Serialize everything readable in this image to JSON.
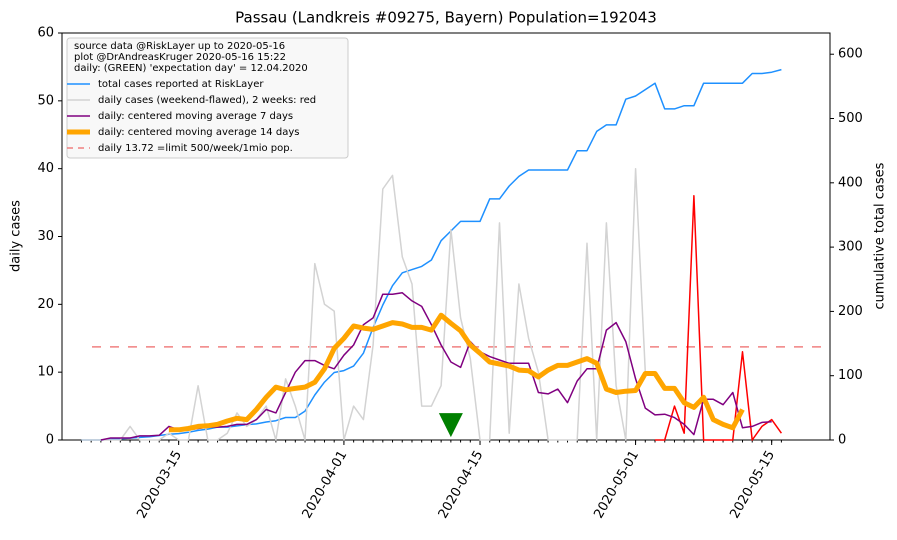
{
  "chart_data": {
    "type": "line",
    "title": "Passau (Landkreis #09275, Bayern) Population=192043",
    "y_label": "daily cases",
    "y2_label": "cumulative total cases",
    "y_label_color": "purple",
    "y2_label_color": "#1e90ff",
    "xlim": [
      "2020-03-03",
      "2020-05-21"
    ],
    "xticks": [
      "2020-03-15",
      "2020-04-01",
      "2020-04-15",
      "2020-05-01",
      "2020-05-15"
    ],
    "ylim": [
      0,
      60
    ],
    "yticks": [
      0,
      10,
      20,
      30,
      40,
      50,
      60
    ],
    "y2lim": [
      0,
      633
    ],
    "y2ticks": [
      0,
      100,
      200,
      300,
      400,
      500,
      600
    ],
    "legend_position": "upper left",
    "legend_header": [
      "source data @RiskLayer up to 2020-05-16",
      "plot @DrAndreasKruger 2020-05-16 15:22",
      "daily: (GREEN) 'expectation day' = 12.04.2020"
    ],
    "x": [
      "2020-03-05",
      "2020-03-06",
      "2020-03-07",
      "2020-03-08",
      "2020-03-09",
      "2020-03-10",
      "2020-03-11",
      "2020-03-12",
      "2020-03-13",
      "2020-03-14",
      "2020-03-15",
      "2020-03-16",
      "2020-03-17",
      "2020-03-18",
      "2020-03-19",
      "2020-03-20",
      "2020-03-21",
      "2020-03-22",
      "2020-03-23",
      "2020-03-24",
      "2020-03-25",
      "2020-03-26",
      "2020-03-27",
      "2020-03-28",
      "2020-03-29",
      "2020-03-30",
      "2020-03-31",
      "2020-04-01",
      "2020-04-02",
      "2020-04-03",
      "2020-04-04",
      "2020-04-05",
      "2020-04-06",
      "2020-04-07",
      "2020-04-08",
      "2020-04-09",
      "2020-04-10",
      "2020-04-11",
      "2020-04-12",
      "2020-04-13",
      "2020-04-14",
      "2020-04-15",
      "2020-04-16",
      "2020-04-17",
      "2020-04-18",
      "2020-04-19",
      "2020-04-20",
      "2020-04-21",
      "2020-04-22",
      "2020-04-23",
      "2020-04-24",
      "2020-04-25",
      "2020-04-26",
      "2020-04-27",
      "2020-04-28",
      "2020-04-29",
      "2020-04-30",
      "2020-05-01",
      "2020-05-02",
      "2020-05-03",
      "2020-05-04",
      "2020-05-05",
      "2020-05-06",
      "2020-05-07",
      "2020-05-08",
      "2020-05-09",
      "2020-05-10",
      "2020-05-11",
      "2020-05-12",
      "2020-05-13",
      "2020-05-14",
      "2020-05-15",
      "2020-05-16"
    ],
    "series": [
      {
        "name": "total cases reported at RiskLayer",
        "color": "#1e90ff",
        "line_width": 1.5,
        "axis": "y2",
        "values": [
          0,
          0,
          0,
          1,
          2,
          3,
          4,
          5,
          7,
          9,
          10,
          12,
          15,
          17,
          20,
          20,
          22,
          24,
          25,
          28,
          30,
          35,
          35,
          45,
          70,
          90,
          105,
          108,
          115,
          135,
          175,
          210,
          240,
          260,
          265,
          270,
          280,
          310,
          325,
          340,
          340,
          340,
          375,
          375,
          395,
          410,
          420,
          420,
          420,
          420,
          420,
          450,
          450,
          480,
          490,
          490,
          530,
          535,
          545,
          555,
          515,
          515,
          520,
          520,
          555,
          555,
          555,
          555,
          555,
          570,
          570,
          572,
          576
        ]
      },
      {
        "name": "daily cases (weekend-flawed), 2 weeks: red",
        "color": "#d3d3d3",
        "line_width": 1.5,
        "values": [
          0,
          0,
          0,
          0,
          0,
          2,
          0,
          0,
          0,
          1,
          0,
          0,
          8,
          0,
          0,
          1,
          4,
          2,
          3,
          5,
          0,
          9,
          5,
          0,
          26,
          20,
          19,
          0,
          5,
          3,
          14,
          37,
          39,
          27,
          23,
          5,
          5,
          8,
          31,
          18,
          12,
          0,
          0,
          32,
          1,
          23,
          15,
          10,
          0,
          0,
          0,
          0,
          29,
          0,
          32,
          8,
          0,
          40,
          10,
          null,
          null,
          null,
          null,
          null,
          null,
          null,
          null,
          null,
          null,
          null,
          null,
          null,
          null
        ]
      },
      {
        "color": "red",
        "line_width": 1.5,
        "values": [
          null,
          null,
          null,
          null,
          null,
          null,
          null,
          null,
          null,
          null,
          null,
          null,
          null,
          null,
          null,
          null,
          null,
          null,
          null,
          null,
          null,
          null,
          null,
          null,
          null,
          null,
          null,
          null,
          null,
          null,
          null,
          null,
          null,
          null,
          null,
          null,
          null,
          null,
          null,
          null,
          null,
          null,
          null,
          null,
          null,
          null,
          null,
          null,
          null,
          null,
          null,
          null,
          null,
          null,
          null,
          null,
          null,
          null,
          null,
          0,
          0,
          5,
          1,
          36,
          0,
          0,
          0,
          0,
          13,
          0,
          2,
          3,
          1
        ]
      },
      {
        "name": "daily: centered moving average 7 days",
        "color": "purple",
        "line_width": 1.5,
        "values": [
          null,
          null,
          0,
          0.3,
          0.3,
          0.3,
          0.6,
          0.6,
          0.7,
          2,
          1.5,
          1.5,
          1.7,
          1.9,
          1.9,
          2,
          2.3,
          2.3,
          3,
          4.5,
          4,
          7,
          10,
          11.7,
          11.7,
          11,
          10.5,
          12.5,
          14,
          17,
          18,
          21.5,
          21.5,
          21.7,
          20.5,
          19.7,
          17,
          14,
          11.5,
          10.7,
          14.5,
          13,
          12.3,
          11.8,
          11.3,
          11.3,
          11.3,
          7,
          6.8,
          7.5,
          5.5,
          8.7,
          10.5,
          10.5,
          16.2,
          17.3,
          14.5,
          9,
          4.7,
          3.7,
          3.8,
          3.3,
          2.3,
          0.8,
          6,
          6,
          5.2,
          7,
          1.8,
          2,
          2.6,
          2.7,
          null
        ]
      },
      {
        "name": "daily: centered moving average 14 days",
        "color": "orange",
        "line_width": 5,
        "values": [
          null,
          null,
          null,
          null,
          null,
          null,
          null,
          null,
          null,
          1.5,
          1.5,
          1.7,
          2,
          2.1,
          2.3,
          2.8,
          3.2,
          3,
          4.5,
          6.3,
          7.8,
          7.4,
          7.6,
          7.8,
          8.5,
          10.5,
          13.5,
          15,
          16.8,
          16.5,
          16.3,
          16.8,
          17.3,
          17.1,
          16.6,
          16.6,
          16.2,
          18.4,
          17.2,
          16.1,
          14,
          12.8,
          11.5,
          11.2,
          10.9,
          10.3,
          10.2,
          9.3,
          10.3,
          11,
          11,
          11.5,
          12,
          11.3,
          7.5,
          7,
          7.2,
          7.3,
          9.8,
          9.8,
          7.6,
          7.6,
          5.5,
          4.8,
          6.3,
          3,
          2.3,
          1.8,
          4.5,
          null,
          null,
          null,
          null
        ]
      }
    ],
    "limit": {
      "value": 13.72,
      "label": "daily 13.72 =limit 500/week/1mio pop.",
      "color": "#f08080"
    },
    "expectation_marker": {
      "x": "2020-04-12",
      "y": 2.2,
      "color": "green"
    }
  }
}
